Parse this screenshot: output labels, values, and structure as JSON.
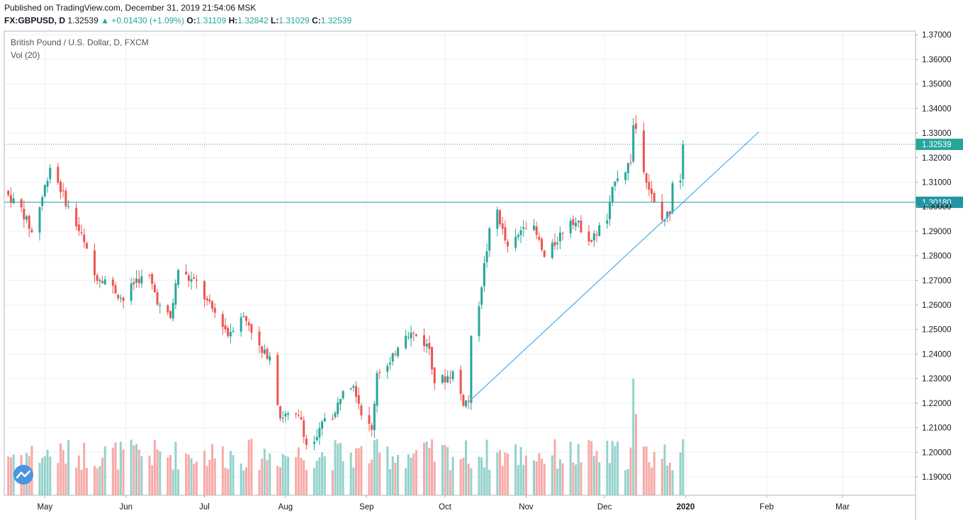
{
  "header": {
    "published": "Published on TradingView.com, December 31, 2019 21:54:06 MSK",
    "symbol": "FX:GBPUSD, D",
    "last": "1.32539",
    "change": "▲ +0.01430 (+1.09%)",
    "open_label": "O:",
    "open": "1.31109",
    "high_label": "H:",
    "high": "1.32842",
    "low_label": "L:",
    "low": "1.31029",
    "close_label": "C:",
    "close": "1.32539"
  },
  "legend": {
    "title": "British Pound / U.S. Dollar, D, FXCM",
    "volume": "Vol (20)"
  },
  "colors": {
    "up": "#26a69a",
    "down": "#ef5350",
    "vol_up": "#93d2cc",
    "vol_down": "#f7a9a7",
    "trendline": "#5bb0ea",
    "hline": "#2196a3",
    "grid": "#eef0f3",
    "axis_text": "#131722",
    "logo": "#4a95dd"
  },
  "icons": {
    "logo": "tradingview-logo-icon"
  },
  "chart_data": {
    "type": "candlestick",
    "ylim": [
      1.1825,
      1.3715
    ],
    "y_ticks": [
      "1.19000",
      "1.20000",
      "1.21000",
      "1.22000",
      "1.23000",
      "1.24000",
      "1.25000",
      "1.26000",
      "1.27000",
      "1.28000",
      "1.29000",
      "1.30000",
      "1.31000",
      "1.32000",
      "1.33000",
      "1.34000",
      "1.35000",
      "1.36000",
      "1.37000"
    ],
    "x_ticks": [
      "May",
      "Jun",
      "Jul",
      "Aug",
      "Sep",
      "Oct",
      "Nov",
      "Dec",
      "2020",
      "Feb",
      "Mar"
    ],
    "price_labels": [
      {
        "name": "last-price",
        "value": "1.32539",
        "y": 1.32539,
        "style": "dotted"
      },
      {
        "name": "horizontal-level",
        "value": "1.30180",
        "y": 1.3018,
        "style": "solid"
      }
    ],
    "trendline": {
      "from_date": "2019-10-10",
      "from_y": 1.2205,
      "to_date": "2020-01-29",
      "to_y": 1.3305
    },
    "anchors": [
      {
        "date": "2019-04-17",
        "close": 1.3045
      },
      {
        "date": "2019-04-22",
        "close": 1.299
      },
      {
        "date": "2019-04-26",
        "close": 1.2895
      },
      {
        "date": "2019-04-30",
        "close": 1.304
      },
      {
        "date": "2019-05-03",
        "close": 1.3165
      },
      {
        "date": "2019-05-06",
        "close": 1.31
      },
      {
        "date": "2019-05-10",
        "close": 1.2995
      },
      {
        "date": "2019-05-15",
        "close": 1.288
      },
      {
        "date": "2019-05-20",
        "close": 1.272
      },
      {
        "date": "2019-05-24",
        "close": 1.2705
      },
      {
        "date": "2019-05-31",
        "close": 1.262
      },
      {
        "date": "2019-06-05",
        "close": 1.2705
      },
      {
        "date": "2019-06-10",
        "close": 1.271
      },
      {
        "date": "2019-06-14",
        "close": 1.259
      },
      {
        "date": "2019-06-18",
        "close": 1.2545
      },
      {
        "date": "2019-06-21",
        "close": 1.2745
      },
      {
        "date": "2019-06-25",
        "close": 1.2705
      },
      {
        "date": "2019-06-28",
        "close": 1.269
      },
      {
        "date": "2019-07-02",
        "close": 1.261
      },
      {
        "date": "2019-07-08",
        "close": 1.2525
      },
      {
        "date": "2019-07-10",
        "close": 1.248
      },
      {
        "date": "2019-07-15",
        "close": 1.256
      },
      {
        "date": "2019-07-18",
        "close": 1.2525
      },
      {
        "date": "2019-07-23",
        "close": 1.24
      },
      {
        "date": "2019-07-26",
        "close": 1.24
      },
      {
        "date": "2019-07-30",
        "close": 1.2145
      },
      {
        "date": "2019-08-01",
        "close": 1.215
      },
      {
        "date": "2019-08-07",
        "close": 1.2135
      },
      {
        "date": "2019-08-09",
        "close": 1.203
      },
      {
        "date": "2019-08-13",
        "close": 1.205
      },
      {
        "date": "2019-08-16",
        "close": 1.2145
      },
      {
        "date": "2019-08-20",
        "close": 1.2155
      },
      {
        "date": "2019-08-23",
        "close": 1.227
      },
      {
        "date": "2019-08-27",
        "close": 1.2285
      },
      {
        "date": "2019-08-30",
        "close": 1.2165
      },
      {
        "date": "2019-09-03",
        "close": 1.2085
      },
      {
        "date": "2019-09-05",
        "close": 1.233
      },
      {
        "date": "2019-09-10",
        "close": 1.2355
      },
      {
        "date": "2019-09-13",
        "close": 1.244
      },
      {
        "date": "2019-09-16",
        "close": 1.249
      },
      {
        "date": "2019-09-20",
        "close": 1.2475
      },
      {
        "date": "2019-09-25",
        "close": 1.2425
      },
      {
        "date": "2019-09-27",
        "close": 1.229
      },
      {
        "date": "2019-10-01",
        "close": 1.23
      },
      {
        "date": "2019-10-04",
        "close": 1.2325
      },
      {
        "date": "2019-10-08",
        "close": 1.2205
      },
      {
        "date": "2019-10-10",
        "close": 1.221
      },
      {
        "date": "2019-10-11",
        "close": 1.2455
      },
      {
        "date": "2019-10-14",
        "close": 1.261
      },
      {
        "date": "2019-10-16",
        "close": 1.276
      },
      {
        "date": "2019-10-18",
        "close": 1.2895
      },
      {
        "date": "2019-10-21",
        "close": 1.2985
      },
      {
        "date": "2019-10-23",
        "close": 1.29
      },
      {
        "date": "2019-10-25",
        "close": 1.2825
      },
      {
        "date": "2019-10-29",
        "close": 1.288
      },
      {
        "date": "2019-10-31",
        "close": 1.2935
      },
      {
        "date": "2019-11-04",
        "close": 1.2905
      },
      {
        "date": "2019-11-06",
        "close": 1.2855
      },
      {
        "date": "2019-11-08",
        "close": 1.279
      },
      {
        "date": "2019-11-12",
        "close": 1.285
      },
      {
        "date": "2019-11-15",
        "close": 1.2905
      },
      {
        "date": "2019-11-18",
        "close": 1.2955
      },
      {
        "date": "2019-11-22",
        "close": 1.2915
      },
      {
        "date": "2019-11-26",
        "close": 1.286
      },
      {
        "date": "2019-11-29",
        "close": 1.2915
      },
      {
        "date": "2019-12-02",
        "close": 1.2945
      },
      {
        "date": "2019-12-05",
        "close": 1.312
      },
      {
        "date": "2019-12-09",
        "close": 1.315
      },
      {
        "date": "2019-12-11",
        "close": 1.319
      },
      {
        "date": "2019-12-12",
        "close": 1.333
      },
      {
        "date": "2019-12-13",
        "close": 1.332
      },
      {
        "date": "2019-12-16",
        "close": 1.316
      },
      {
        "date": "2019-12-18",
        "close": 1.3075
      },
      {
        "date": "2019-12-20",
        "close": 1.301
      },
      {
        "date": "2019-12-23",
        "close": 1.2945
      },
      {
        "date": "2019-12-24",
        "close": 1.295
      },
      {
        "date": "2019-12-26",
        "close": 1.2985
      },
      {
        "date": "2019-12-27",
        "close": 1.311
      },
      {
        "date": "2019-12-30",
        "close": 1.3115
      },
      {
        "date": "2019-12-31",
        "close": 1.32539
      }
    ],
    "volume_spikes": [
      {
        "date": "2019-12-12",
        "level": "very high"
      },
      {
        "date": "2019-12-13",
        "level": "high"
      }
    ]
  }
}
